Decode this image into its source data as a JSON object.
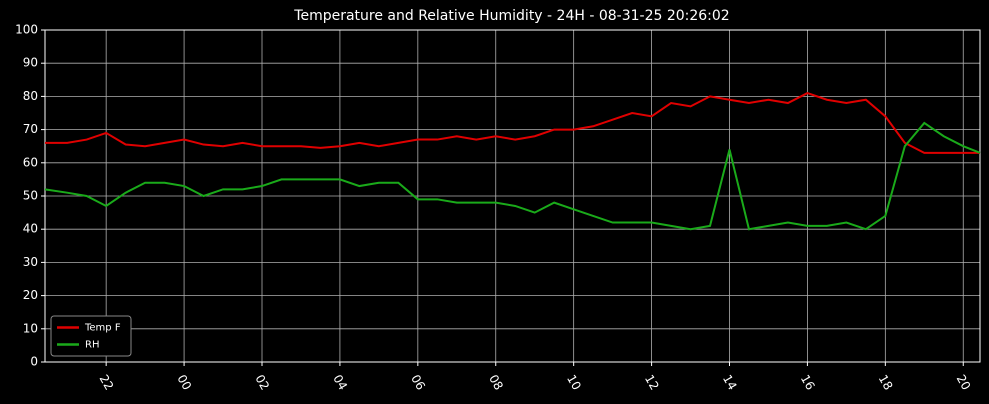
{
  "chart_data": {
    "type": "line",
    "title": "Temperature and Relative Humidity - 24H - 08-31-25 20:26:02",
    "x": [
      20.43,
      21,
      21.5,
      22,
      22.5,
      23,
      23.5,
      24,
      24.5,
      25,
      25.5,
      26,
      26.5,
      27,
      27.5,
      28,
      28.5,
      29,
      29.5,
      30,
      30.5,
      31,
      31.5,
      32,
      32.5,
      33,
      33.5,
      34,
      34.5,
      35,
      35.5,
      36,
      36.5,
      37,
      37.5,
      38,
      38.5,
      39,
      39.5,
      40,
      40.5,
      41,
      41.5,
      42,
      42.5,
      43,
      43.5,
      44,
      44.43
    ],
    "series": [
      {
        "name": "Temp F",
        "color": "#e00000",
        "values": [
          66,
          66,
          67,
          69,
          65.5,
          65,
          66,
          67,
          65.5,
          65,
          66,
          65,
          65,
          65,
          64.5,
          65,
          66,
          65,
          66,
          67,
          67,
          68,
          67,
          68,
          67,
          68,
          70,
          70,
          71,
          73,
          75,
          74,
          78,
          77,
          80,
          79,
          78,
          79,
          78,
          81,
          79,
          78,
          79,
          74,
          66,
          63,
          63,
          63,
          63
        ]
      },
      {
        "name": "RH",
        "color": "#1aaa1a",
        "values": [
          52,
          51,
          50,
          47,
          51,
          54,
          54,
          53,
          50,
          52,
          52,
          53,
          55,
          55,
          55,
          55,
          53,
          54,
          54,
          49,
          49,
          48,
          48,
          48,
          47,
          45,
          48,
          46,
          44,
          42,
          42,
          42,
          41,
          40,
          41,
          64,
          40,
          41,
          42,
          41,
          41,
          42,
          40,
          44,
          65,
          72,
          68,
          65,
          63
        ]
      }
    ],
    "xlim": [
      20.43,
      44.43
    ],
    "xticks": [
      22,
      {
        "value": 24,
        "label": "00"
      },
      {
        "value": 26,
        "label": "02"
      },
      {
        "value": 28,
        "label": "04"
      },
      {
        "value": 30,
        "label": "06"
      },
      {
        "value": 32,
        "label": "08"
      },
      {
        "value": 34,
        "label": "10"
      },
      {
        "value": 36,
        "label": "12"
      },
      {
        "value": 38,
        "label": "14"
      },
      {
        "value": 40,
        "label": "16"
      },
      {
        "value": 42,
        "label": "18"
      },
      {
        "value": 44,
        "label": "20"
      }
    ],
    "ylim": [
      0,
      100
    ],
    "yticks": [
      0,
      10,
      20,
      30,
      40,
      50,
      60,
      70,
      80,
      90,
      100
    ],
    "grid": true,
    "legend": "lower left"
  }
}
